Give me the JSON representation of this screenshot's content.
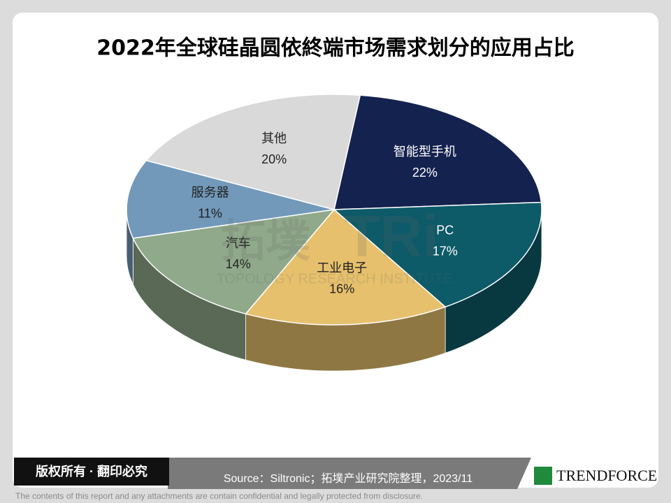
{
  "chart_data": {
    "type": "pie3d",
    "title": "2022年全球硅晶圆依終端市场需求划分的应用占比",
    "categories": [
      "智能型手机",
      "PC",
      "工业电子",
      "汽车",
      "服务器",
      "其他"
    ],
    "values": [
      22,
      17,
      16,
      14,
      11,
      20
    ],
    "value_labels": [
      "22%",
      "17%",
      "16%",
      "14%",
      "11%",
      "20%"
    ],
    "colors": [
      "#14224f",
      "#0d5a68",
      "#e6c06c",
      "#8fa98a",
      "#7299b9",
      "#d9d9d9"
    ]
  },
  "watermark": {
    "mark": "拓墣",
    "logo": "TRi",
    "name": "TOPOLOGY RESEARCH INSTITUTE"
  },
  "footer": {
    "copyright": "版权所有 · 翻印必究",
    "source": "Source：Siltronic；拓墣产业研究院整理，2023/11",
    "logo": "TRENDFORCE",
    "disclaimer": "The contents of this report and any attachments are contain confidential and legally protected from disclosure."
  }
}
